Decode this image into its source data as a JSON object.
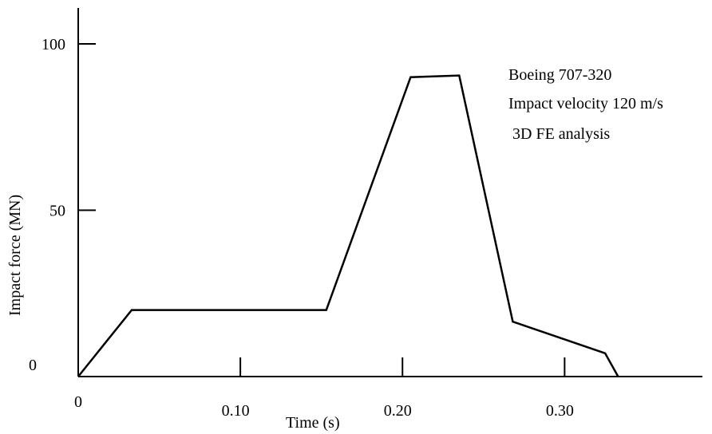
{
  "chart_data": {
    "type": "line",
    "title": "",
    "xlabel": "Time (s)",
    "ylabel": "Impact force (MN)",
    "xlim": [
      0,
      0.385
    ],
    "ylim": [
      0,
      100
    ],
    "x_ticks": [
      {
        "value": 0,
        "label": "0"
      },
      {
        "value": 0.1,
        "label": "0.10"
      },
      {
        "value": 0.2,
        "label": "0.20"
      },
      {
        "value": 0.3,
        "label": "0.30"
      }
    ],
    "y_ticks": [
      {
        "value": 0,
        "label": "0"
      },
      {
        "value": 50,
        "label": "50"
      },
      {
        "value": 100,
        "label": "100"
      }
    ],
    "annotations": [
      "Boeing 707-320",
      "Impact velocity 120 m/s",
      " 3D FE analysis"
    ],
    "grid": false,
    "series": [
      {
        "x": [
          0,
          0.033,
          0.153,
          0.205,
          0.235,
          0.268,
          0.325,
          0.333
        ],
        "y": [
          0,
          20,
          20,
          90,
          90.5,
          16.5,
          7,
          0
        ]
      }
    ],
    "line_color": "#000000"
  }
}
